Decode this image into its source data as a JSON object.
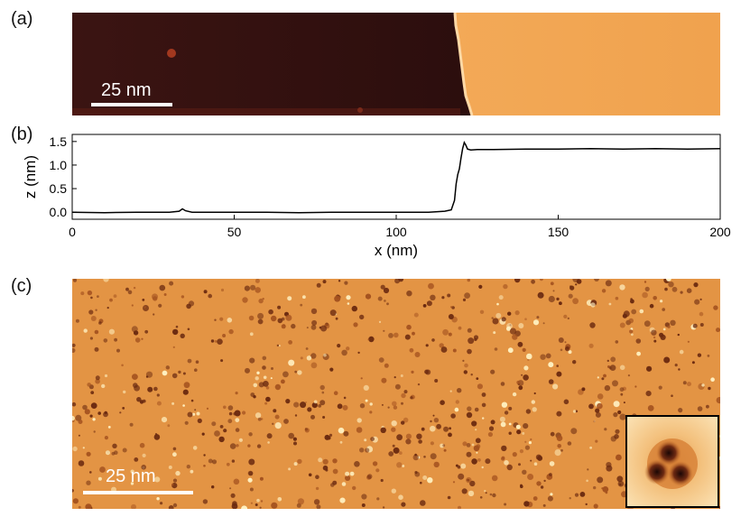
{
  "panels": {
    "a": {
      "label": "(a)",
      "scale_bar": "25 nm"
    },
    "b": {
      "label": "(b)"
    },
    "c": {
      "label": "(c)",
      "scale_bar": "25 nm"
    }
  },
  "colors": {
    "substrate": "#2a0f0c",
    "island": "#f0a24e",
    "topo_mid": "#e3903f"
  },
  "chart_data": {
    "type": "line",
    "title": "",
    "xlabel": "x (nm)",
    "ylabel": "z (nm)",
    "xlim": [
      0,
      200
    ],
    "ylim": [
      -0.15,
      1.65
    ],
    "x_ticks": [
      0,
      50,
      100,
      150,
      200
    ],
    "y_ticks": [
      0.0,
      0.5,
      1.0,
      1.5
    ],
    "x_tick_labels": [
      "0",
      "50",
      "100",
      "150",
      "200"
    ],
    "y_tick_labels": [
      "0.0",
      "0.5",
      "1.0",
      "1.5"
    ],
    "grid": false,
    "series": [
      {
        "x": [
          0,
          10,
          20,
          30,
          33,
          34,
          35,
          37,
          40,
          50,
          60,
          70,
          80,
          90,
          100,
          110,
          115,
          117,
          118,
          118.5,
          119,
          119.5,
          120,
          120.5,
          121,
          121.5,
          122,
          123,
          125,
          130,
          140,
          150,
          160,
          170,
          180,
          190,
          200
        ],
        "y": [
          0.0,
          -0.01,
          0.0,
          0.0,
          0.02,
          0.07,
          0.03,
          0.0,
          0.0,
          0.0,
          0.0,
          -0.01,
          0.0,
          0.0,
          0.0,
          0.0,
          0.02,
          0.05,
          0.25,
          0.6,
          0.8,
          0.92,
          1.15,
          1.35,
          1.48,
          1.42,
          1.34,
          1.32,
          1.33,
          1.33,
          1.34,
          1.34,
          1.35,
          1.34,
          1.35,
          1.34,
          1.35
        ]
      }
    ]
  }
}
